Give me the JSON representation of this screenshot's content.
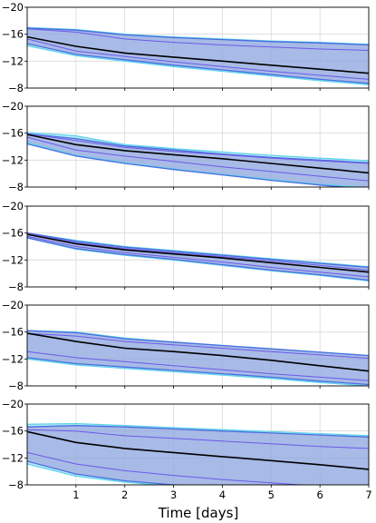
{
  "figure": {
    "xlabel": "Time [days]"
  },
  "chart_data": [
    {
      "type": "area",
      "x": [
        0,
        1,
        2,
        3,
        4,
        5,
        6,
        7
      ],
      "xlim": [
        0,
        7
      ],
      "ylim": [
        -20,
        -8
      ],
      "y_inverted": true,
      "yticks": [
        -20,
        -16,
        -12,
        -8
      ],
      "grid": true,
      "series": [
        {
          "role": "median",
          "values": [
            -15.6,
            -14.2,
            -13.2,
            -12.6,
            -12.0,
            -11.4,
            -10.8,
            -10.2
          ],
          "color": "#000000"
        },
        {
          "role": "band-outer-cyan-upper",
          "values": [
            -17.0,
            -16.7,
            -16.0,
            -15.6,
            -15.3,
            -15.0,
            -14.8,
            -14.5
          ],
          "color": "#5fd3ea"
        },
        {
          "role": "band-outer-cyan-lower",
          "values": [
            -14.3,
            -12.8,
            -12.0,
            -11.2,
            -10.5,
            -9.8,
            -9.1,
            -8.5
          ],
          "color": "#5fd3ea"
        },
        {
          "role": "band-blue-upper",
          "values": [
            -16.9,
            -16.6,
            -15.9,
            -15.5,
            -15.2,
            -14.9,
            -14.7,
            -14.4
          ],
          "color": "#4a6ee0"
        },
        {
          "role": "band-blue-lower",
          "values": [
            -14.6,
            -13.0,
            -12.2,
            -11.4,
            -10.7,
            -10.0,
            -9.3,
            -8.7
          ],
          "color": "#4a6ee0"
        },
        {
          "role": "inner-line-upper",
          "values": [
            -16.8,
            -16.3,
            -15.3,
            -14.8,
            -14.4,
            -14.1,
            -13.8,
            -13.6
          ],
          "color": "#6b5ae8"
        },
        {
          "role": "inner-line-lower",
          "values": [
            -15.3,
            -13.5,
            -12.7,
            -11.9,
            -11.2,
            -10.5,
            -9.9,
            -9.3
          ],
          "color": "#6b5ae8"
        }
      ]
    },
    {
      "type": "area",
      "x": [
        0,
        1,
        2,
        3,
        4,
        5,
        6,
        7
      ],
      "xlim": [
        0,
        7
      ],
      "ylim": [
        -20,
        -8
      ],
      "y_inverted": true,
      "yticks": [
        -20,
        -16,
        -12,
        -8
      ],
      "grid": true,
      "series": [
        {
          "role": "median",
          "values": [
            -15.8,
            -14.3,
            -13.4,
            -12.8,
            -12.2,
            -11.5,
            -10.8,
            -10.1
          ],
          "color": "#000000"
        },
        {
          "role": "band-outer-cyan-upper",
          "values": [
            -16.1,
            -15.6,
            -14.3,
            -13.7,
            -13.2,
            -12.7,
            -12.3,
            -11.9
          ],
          "color": "#5fd3ea"
        },
        {
          "role": "band-outer-cyan-lower",
          "values": [
            -14.6,
            -12.7,
            -11.6,
            -10.7,
            -9.9,
            -9.1,
            -8.4,
            -7.9
          ],
          "color": "#5fd3ea"
        },
        {
          "role": "band-blue-upper",
          "values": [
            -15.9,
            -15.2,
            -14.1,
            -13.5,
            -12.9,
            -12.4,
            -12.0,
            -11.6
          ],
          "color": "#4a6ee0"
        },
        {
          "role": "band-blue-lower",
          "values": [
            -14.4,
            -12.6,
            -11.5,
            -10.6,
            -9.8,
            -9.0,
            -8.3,
            -7.7
          ],
          "color": "#4a6ee0"
        },
        {
          "role": "inner-line-upper",
          "values": [
            -15.9,
            -14.9,
            -13.9,
            -13.3,
            -12.8,
            -12.3,
            -11.9,
            -11.5
          ],
          "color": "#6b5ae8"
        },
        {
          "role": "inner-line-lower",
          "values": [
            -15.4,
            -13.5,
            -12.6,
            -11.8,
            -11.0,
            -10.3,
            -9.6,
            -8.9
          ],
          "color": "#6b5ae8"
        }
      ]
    },
    {
      "type": "area",
      "x": [
        0,
        1,
        2,
        3,
        4,
        5,
        6,
        7
      ],
      "xlim": [
        0,
        7
      ],
      "ylim": [
        -20,
        -8
      ],
      "y_inverted": true,
      "yticks": [
        -20,
        -16,
        -12,
        -8
      ],
      "grid": true,
      "series": [
        {
          "role": "median",
          "values": [
            -15.8,
            -14.4,
            -13.5,
            -12.9,
            -12.3,
            -11.6,
            -10.9,
            -10.2
          ],
          "color": "#000000"
        },
        {
          "role": "band-outer-cyan-upper",
          "values": [
            -16.0,
            -14.9,
            -14.0,
            -13.4,
            -12.8,
            -12.2,
            -11.6,
            -11.0
          ],
          "color": "#5fd3ea"
        },
        {
          "role": "band-outer-cyan-lower",
          "values": [
            -15.3,
            -13.6,
            -12.7,
            -12.0,
            -11.2,
            -10.4,
            -9.7,
            -8.9
          ],
          "color": "#5fd3ea"
        },
        {
          "role": "band-blue-upper",
          "values": [
            -16.0,
            -14.8,
            -13.9,
            -13.3,
            -12.7,
            -12.1,
            -11.5,
            -10.9
          ],
          "color": "#4a6ee0"
        },
        {
          "role": "band-blue-lower",
          "values": [
            -15.3,
            -13.7,
            -12.8,
            -12.1,
            -11.3,
            -10.5,
            -9.8,
            -9.0
          ],
          "color": "#4a6ee0"
        },
        {
          "role": "inner-line-upper",
          "values": [
            -16.0,
            -14.6,
            -13.7,
            -13.1,
            -12.5,
            -11.9,
            -11.2,
            -10.5
          ],
          "color": "#6b5ae8"
        },
        {
          "role": "inner-line-lower",
          "values": [
            -15.5,
            -14.0,
            -13.1,
            -12.4,
            -11.7,
            -10.9,
            -10.2,
            -9.5
          ],
          "color": "#6b5ae8"
        }
      ]
    },
    {
      "type": "area",
      "x": [
        0,
        1,
        2,
        3,
        4,
        5,
        6,
        7
      ],
      "xlim": [
        0,
        7
      ],
      "ylim": [
        -20,
        -8
      ],
      "y_inverted": true,
      "yticks": [
        -20,
        -16,
        -12,
        -8
      ],
      "grid": true,
      "series": [
        {
          "role": "median",
          "values": [
            -15.8,
            -14.6,
            -13.6,
            -13.1,
            -12.5,
            -11.8,
            -11.0,
            -10.2
          ],
          "color": "#000000"
        },
        {
          "role": "band-outer-cyan-upper",
          "values": [
            -16.2,
            -16.0,
            -15.1,
            -14.5,
            -14.0,
            -13.5,
            -13.0,
            -12.5
          ],
          "color": "#5fd3ea"
        },
        {
          "role": "band-outer-cyan-lower",
          "values": [
            -12.0,
            -11.1,
            -10.6,
            -10.1,
            -9.6,
            -9.1,
            -8.5,
            -8.0
          ],
          "color": "#5fd3ea"
        },
        {
          "role": "band-blue-upper",
          "values": [
            -16.2,
            -15.9,
            -15.0,
            -14.5,
            -14.0,
            -13.5,
            -13.0,
            -12.5
          ],
          "color": "#4a6ee0"
        },
        {
          "role": "band-blue-lower",
          "values": [
            -12.2,
            -11.3,
            -10.8,
            -10.3,
            -9.8,
            -9.3,
            -8.7,
            -8.2
          ],
          "color": "#4a6ee0"
        },
        {
          "role": "inner-line-upper",
          "values": [
            -15.8,
            -15.4,
            -14.6,
            -14.1,
            -13.6,
            -13.1,
            -12.6,
            -12.1
          ],
          "color": "#6b5ae8"
        },
        {
          "role": "inner-line-lower",
          "values": [
            -13.1,
            -12.2,
            -11.6,
            -11.0,
            -10.4,
            -9.8,
            -9.3,
            -8.8
          ],
          "color": "#6b5ae8"
        }
      ]
    },
    {
      "type": "area",
      "x": [
        0,
        1,
        2,
        3,
        4,
        5,
        6,
        7
      ],
      "xlim": [
        0,
        7
      ],
      "ylim": [
        -20,
        -8
      ],
      "y_inverted": true,
      "yticks": [
        -20,
        -16,
        -12,
        -8
      ],
      "grid": true,
      "series": [
        {
          "role": "median",
          "values": [
            -15.9,
            -14.3,
            -13.4,
            -12.8,
            -12.2,
            -11.6,
            -11.0,
            -10.3
          ],
          "color": "#000000"
        },
        {
          "role": "band-outer-cyan-upper",
          "values": [
            -17.0,
            -17.1,
            -16.8,
            -16.5,
            -16.2,
            -15.9,
            -15.6,
            -15.3
          ],
          "color": "#5fd3ea"
        },
        {
          "role": "band-outer-cyan-lower",
          "values": [
            -11.1,
            -9.3,
            -8.4,
            -7.8,
            -7.3,
            -6.9,
            -6.5,
            -6.1
          ],
          "color": "#5fd3ea"
        },
        {
          "role": "band-blue-upper",
          "values": [
            -16.6,
            -16.8,
            -16.6,
            -16.3,
            -16.0,
            -15.7,
            -15.4,
            -15.1
          ],
          "color": "#4a6ee0"
        },
        {
          "role": "band-blue-lower",
          "values": [
            -11.5,
            -9.6,
            -8.6,
            -8.0,
            -7.5,
            -7.1,
            -6.7,
            -6.3
          ],
          "color": "#4a6ee0"
        },
        {
          "role": "inner-line-upper",
          "values": [
            -16.2,
            -16.0,
            -15.3,
            -14.9,
            -14.5,
            -14.1,
            -13.7,
            -13.4
          ],
          "color": "#6b5ae8"
        },
        {
          "role": "inner-line-lower",
          "values": [
            -12.8,
            -11.1,
            -10.1,
            -9.4,
            -8.8,
            -8.3,
            -7.8,
            -7.4
          ],
          "color": "#6b5ae8"
        }
      ]
    }
  ]
}
